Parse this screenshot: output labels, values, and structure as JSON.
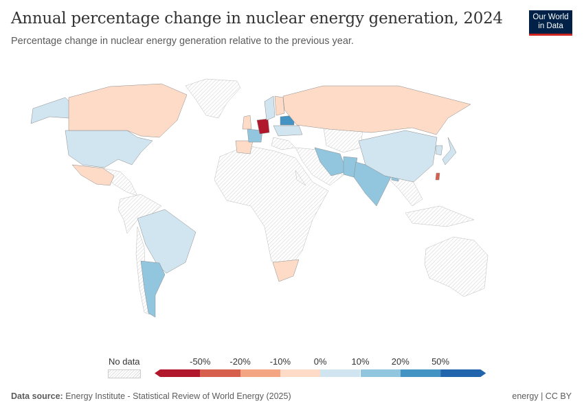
{
  "header": {
    "title": "Annual percentage change in nuclear energy generation, 2024",
    "subtitle": "Percentage change in nuclear energy generation relative to the previous year."
  },
  "logo": {
    "line1": "Our World",
    "line2": "in Data"
  },
  "legend": {
    "no_data_label": "No data",
    "ticks": [
      "-50%",
      "-20%",
      "-10%",
      "0%",
      "10%",
      "20%",
      "50%"
    ],
    "colors": [
      "#b2182b",
      "#d6604d",
      "#f4a582",
      "#fddbc7",
      "#d1e5f0",
      "#92c5de",
      "#4393c3",
      "#2166ac"
    ],
    "no_data_color": "hatched"
  },
  "map": {
    "countries": [
      {
        "name": "United States",
        "bin": "0% to 10%"
      },
      {
        "name": "Canada",
        "bin": "-10% to 0%"
      },
      {
        "name": "Mexico",
        "bin": "-10% to 0%"
      },
      {
        "name": "Brazil",
        "bin": "0% to 10%"
      },
      {
        "name": "Argentina",
        "bin": "10% to 20%"
      },
      {
        "name": "South Africa",
        "bin": "-10% to 0%"
      },
      {
        "name": "United Kingdom",
        "bin": "-10% to 0%"
      },
      {
        "name": "Spain",
        "bin": "-10% to 0%"
      },
      {
        "name": "France",
        "bin": "10% to 20%"
      },
      {
        "name": "Germany",
        "bin": "< -50%"
      },
      {
        "name": "Sweden",
        "bin": "0% to 10%"
      },
      {
        "name": "Finland",
        "bin": "-10% to 0%"
      },
      {
        "name": "Belarus",
        "bin": "20% to 50%"
      },
      {
        "name": "Ukraine",
        "bin": "0% to 10%"
      },
      {
        "name": "Russia",
        "bin": "-10% to 0%"
      },
      {
        "name": "Iran",
        "bin": "10% to 20%"
      },
      {
        "name": "Pakistan",
        "bin": "10% to 20%"
      },
      {
        "name": "India",
        "bin": "10% to 20%"
      },
      {
        "name": "Bangladesh",
        "bin": "10% to 20%"
      },
      {
        "name": "China",
        "bin": "0% to 10%"
      },
      {
        "name": "South Korea",
        "bin": "0% to 10%"
      },
      {
        "name": "Japan",
        "bin": "0% to 10%"
      },
      {
        "name": "Taiwan",
        "bin": "-50% to -20%"
      }
    ]
  },
  "footer": {
    "source_label": "Data source:",
    "source": "Energy Institute - Statistical Review of World Energy (2025)",
    "right": "energy | CC BY"
  }
}
